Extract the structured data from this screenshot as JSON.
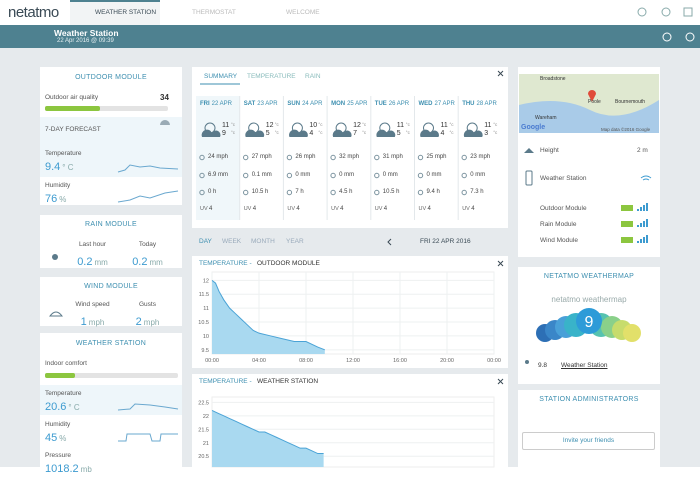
{
  "nav": {
    "logo": "netatmo",
    "tabs": [
      "WEATHER STATION",
      "THERMOSTAT",
      "WELCOME"
    ]
  },
  "header": {
    "title": "Weather Station",
    "date": "22 Apr 2016 @ 09:39"
  },
  "outdoor": {
    "title": "OUTDOOR MODULE",
    "air_label": "Outdoor air quality",
    "air_value": "34",
    "forecast_label": "7-DAY FORECAST",
    "temp_label": "Temperature",
    "temp_value": "9.4",
    "temp_unit": "° C",
    "hum_label": "Humidity",
    "hum_value": "76",
    "hum_unit": "%"
  },
  "rain": {
    "title": "RAIN MODULE",
    "items": [
      {
        "label": "Last hour",
        "value": "0.2",
        "unit": "mm"
      },
      {
        "label": "Today",
        "value": "0.2",
        "unit": "mm"
      }
    ]
  },
  "wind": {
    "title": "WIND MODULE",
    "items": [
      {
        "label": "Wind speed",
        "value": "1",
        "unit": "mph"
      },
      {
        "label": "Gusts",
        "value": "2",
        "unit": "mph"
      }
    ]
  },
  "station": {
    "title": "WEATHER STATION",
    "comfort_label": "Indoor comfort",
    "temp_label": "Temperature",
    "temp_value": "20.6",
    "temp_unit": "° C",
    "hum_label": "Humidity",
    "hum_value": "45",
    "hum_unit": "%",
    "pres_label": "Pressure",
    "pres_value": "1018.2",
    "pres_unit": "mb"
  },
  "forecast": {
    "tabs": [
      "SUMMARY",
      "TEMPERATURE",
      "RAIN"
    ],
    "deg_unit": "°c",
    "uv_label": "UV",
    "days": [
      {
        "day": "FRI",
        "date": "22 APR",
        "high": "11",
        "low": "9",
        "wind": "24 mph",
        "rain": "6.9 mm",
        "sun": "0 h",
        "uv": "4"
      },
      {
        "day": "SAT",
        "date": "23 APR",
        "high": "12",
        "low": "5",
        "wind": "27 mph",
        "rain": "0.1 mm",
        "sun": "10.5 h",
        "uv": "4"
      },
      {
        "day": "SUN",
        "date": "24 APR",
        "high": "10",
        "low": "4",
        "wind": "26 mph",
        "rain": "0 mm",
        "sun": "7 h",
        "uv": "4"
      },
      {
        "day": "MON",
        "date": "25 APR",
        "high": "12",
        "low": "7",
        "wind": "32 mph",
        "rain": "0 mm",
        "sun": "4.5 h",
        "uv": "4"
      },
      {
        "day": "TUE",
        "date": "26 APR",
        "high": "11",
        "low": "5",
        "wind": "31 mph",
        "rain": "0 mm",
        "sun": "10.5 h",
        "uv": "4"
      },
      {
        "day": "WED",
        "date": "27 APR",
        "high": "11",
        "low": "4",
        "wind": "25 mph",
        "rain": "0 mm",
        "sun": "9.4 h",
        "uv": "4"
      },
      {
        "day": "THU",
        "date": "28 APR",
        "high": "11",
        "low": "3",
        "wind": "23 mph",
        "rain": "0 mm",
        "sun": "7.3 h",
        "uv": "4"
      }
    ]
  },
  "range": {
    "tabs": [
      "DAY",
      "WEEK",
      "MONTH",
      "YEAR"
    ],
    "date": "FRI 22 APR 2016"
  },
  "charts": [
    {
      "type": "area",
      "label": "TEMPERATURE -",
      "module": "OUTDOOR MODULE",
      "color": "#4aa3d6",
      "x": [
        0,
        0.3,
        0.6,
        1,
        1.5,
        2,
        2.5,
        3,
        3.5,
        4,
        5,
        6,
        7,
        8,
        9,
        9.6
      ],
      "values": [
        12.0,
        11.9,
        11.6,
        11.3,
        11.0,
        10.8,
        10.6,
        10.4,
        10.2,
        10.1,
        10.0,
        9.9,
        9.8,
        9.8,
        9.6,
        9.5
      ],
      "xlim": [
        0,
        24
      ],
      "xticks": [
        {
          "value": 0,
          "label": "00:00"
        },
        {
          "value": 4,
          "label": "04:00"
        },
        {
          "value": 8,
          "label": "08:00"
        },
        {
          "value": 12,
          "label": "12:00"
        },
        {
          "value": 16,
          "label": "16:00"
        },
        {
          "value": 20,
          "label": "20:00"
        },
        {
          "value": 24,
          "label": "00:00"
        }
      ],
      "ylim": [
        9.35,
        12.3
      ],
      "yticks": [
        12,
        11.5,
        11,
        10.5,
        10,
        9.5
      ]
    },
    {
      "type": "area",
      "label": "TEMPERATURE -",
      "module": "WEATHER STATION",
      "color": "#4aa3d6",
      "x": [
        0,
        0.5,
        1,
        1.5,
        2,
        2.5,
        3,
        3.5,
        4,
        4.5,
        5,
        5.5,
        6,
        6.5,
        7,
        7.5,
        8,
        8.5,
        9,
        9.5
      ],
      "values": [
        22.2,
        22.1,
        22.0,
        21.9,
        21.8,
        21.7,
        21.6,
        21.5,
        21.4,
        21.4,
        21.3,
        21.2,
        21.1,
        21.0,
        20.9,
        20.8,
        20.8,
        20.7,
        20.6,
        20.6
      ],
      "xlim": [
        0,
        24
      ],
      "ylim": [
        20.1,
        22.7
      ],
      "yticks": [
        22.5,
        22,
        21.5,
        21,
        20.5
      ]
    }
  ],
  "map": {
    "places": [
      "Broadstone",
      "Poole",
      "Bournemouth",
      "Wareham"
    ],
    "brand": "Google",
    "credit": "Map data ©2016 Google"
  },
  "modules": {
    "height_label": "Height",
    "height_value": "2 m",
    "items": [
      "Weather Station",
      "Outdoor Module",
      "Rain Module",
      "Wind Module"
    ]
  },
  "weathermap": {
    "title": "NETATMO WEATHERMAP",
    "logo": "netatmo weathermap",
    "bubble": "9",
    "value": "9.8",
    "station": "Weather Station"
  },
  "admins": {
    "title": "STATION ADMINISTRATORS",
    "button": "Invite your friends"
  }
}
